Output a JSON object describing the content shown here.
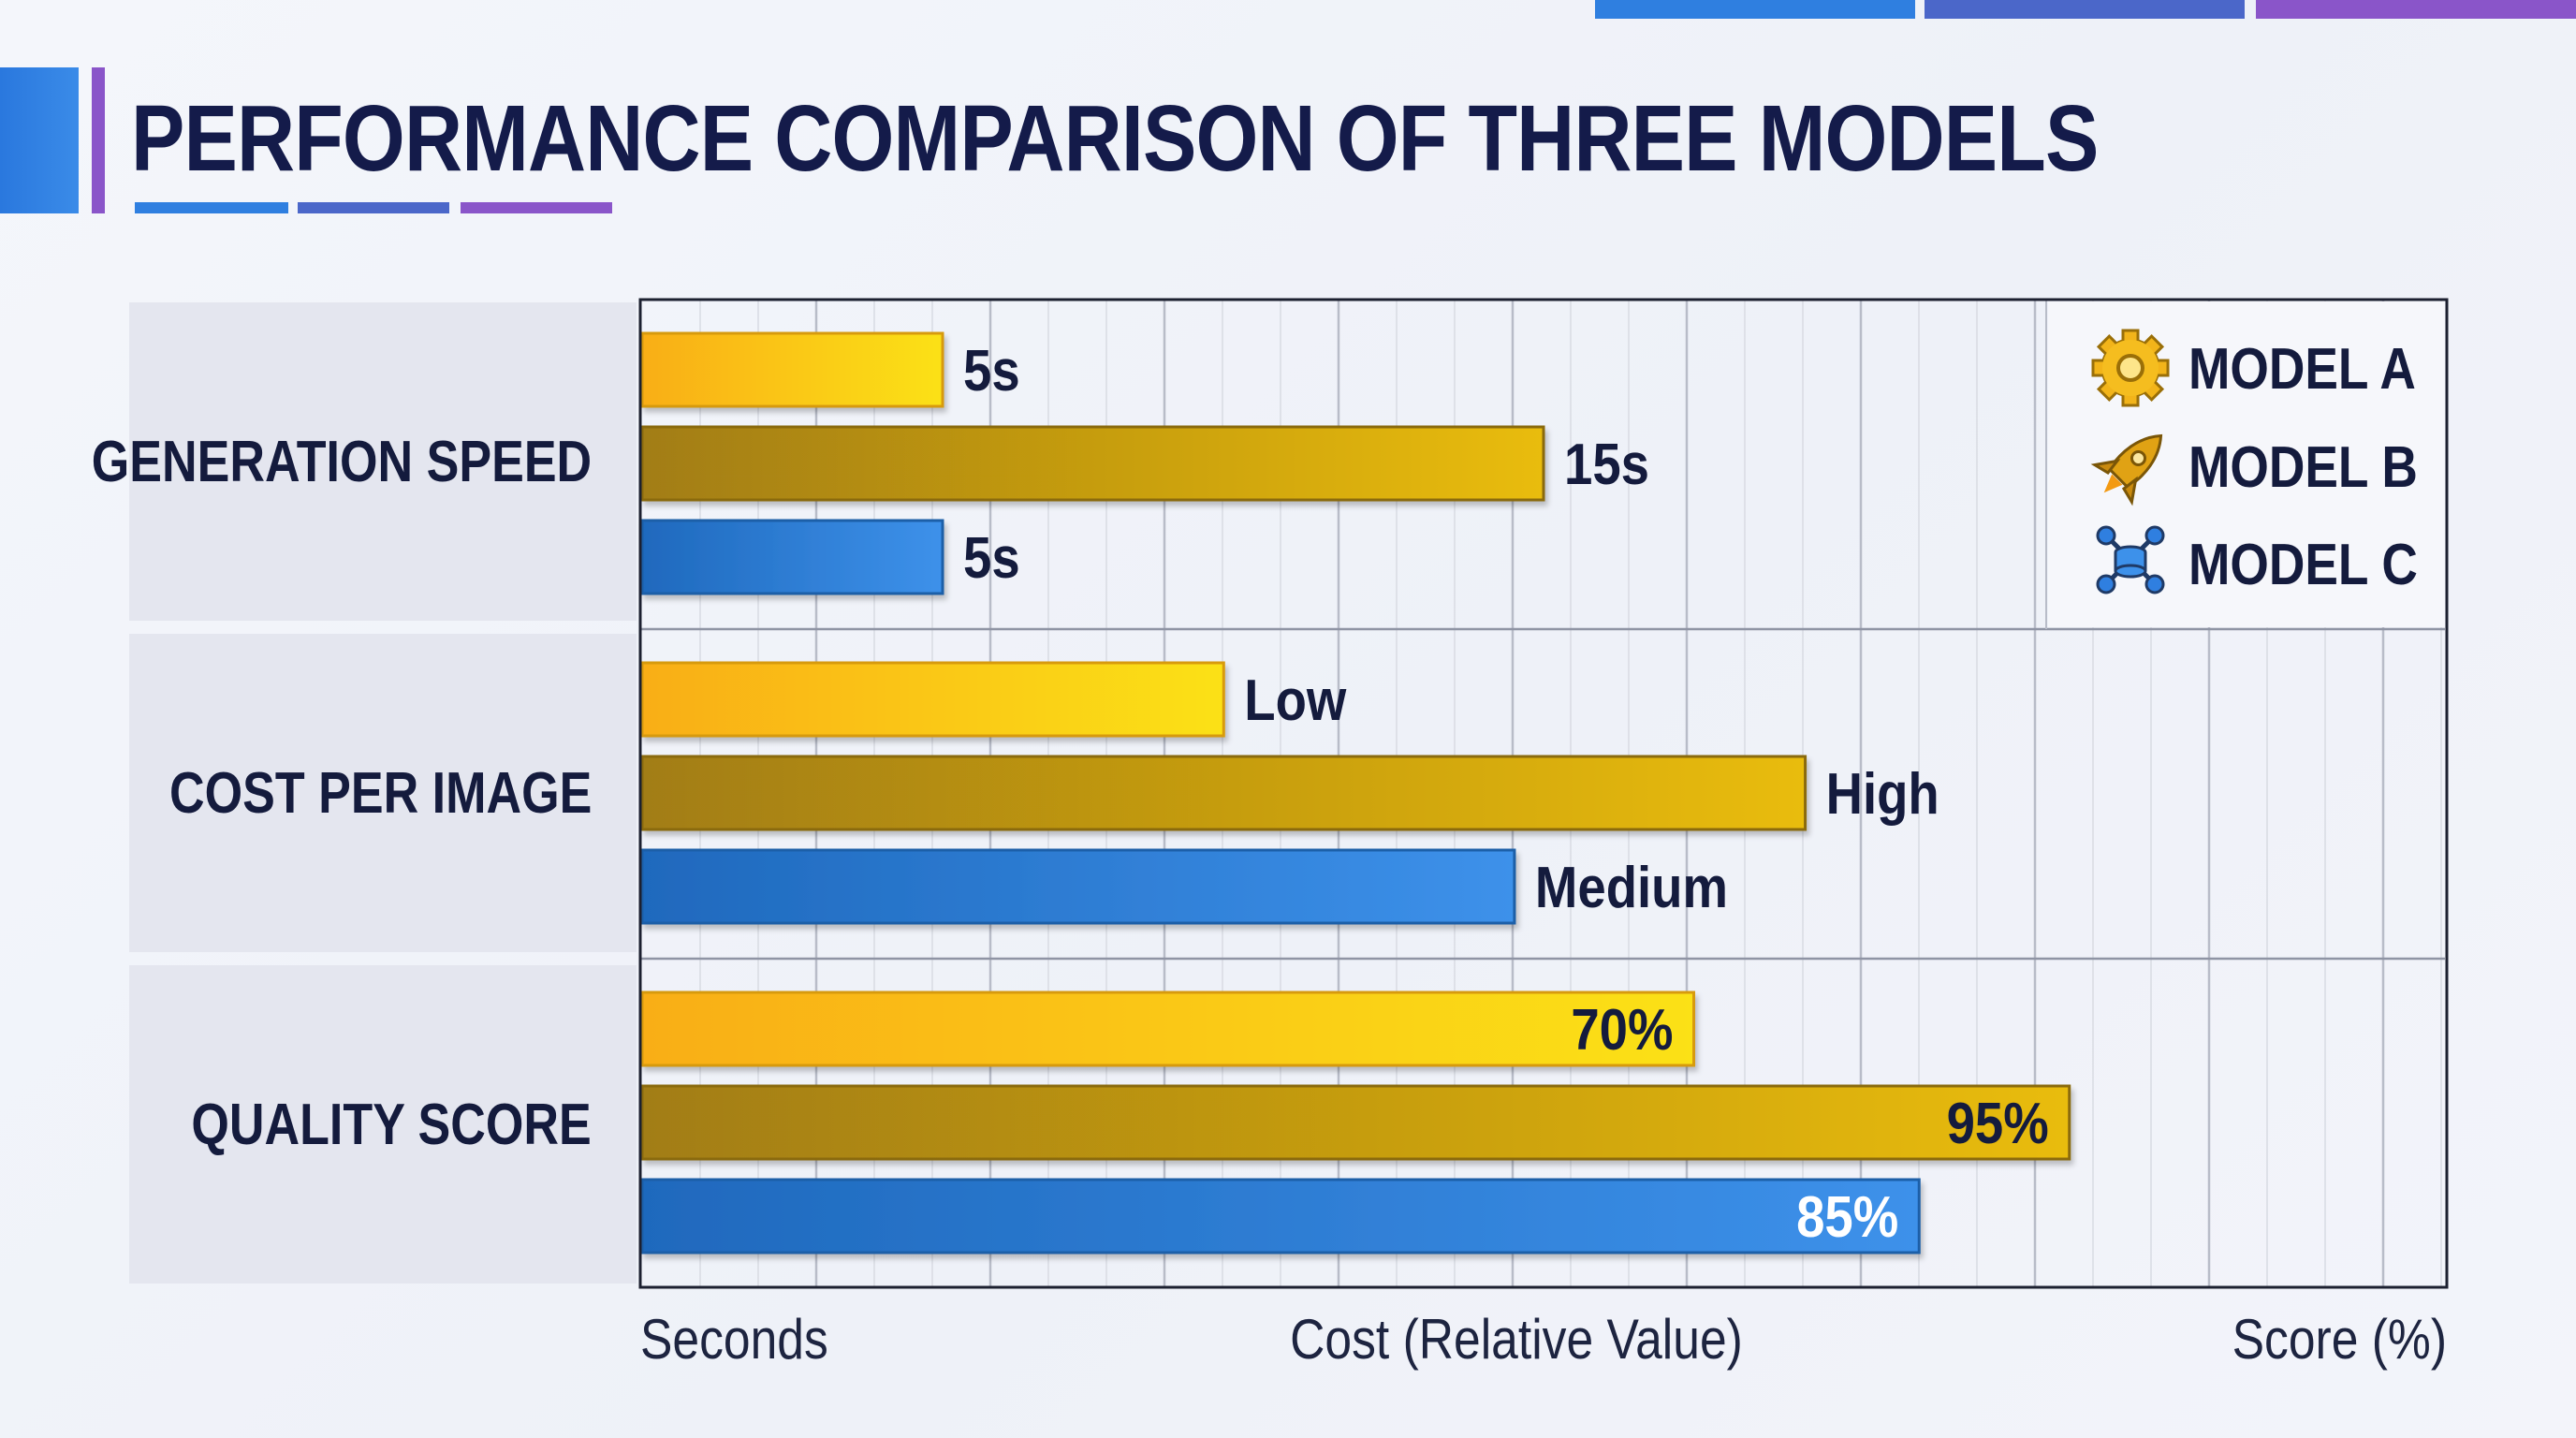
{
  "title": "PERFORMANCE COMPARISON OF THREE MODELS",
  "colors": {
    "title": "#141b4a",
    "accent_blue": "#2f7fe0",
    "accent_indigo": "#4b67c9",
    "accent_purple": "#8a55c9",
    "model_a": "#f8c51a",
    "model_b": "#c59b0c",
    "model_c": "#2e7cd8",
    "grid": "#c9ccd6",
    "axis": "#1c2030"
  },
  "legend": {
    "items": [
      {
        "label": "MODEL A",
        "icon": "gear-icon"
      },
      {
        "label": "MODEL B",
        "icon": "rocket-icon"
      },
      {
        "label": "MODEL C",
        "icon": "network-icon"
      }
    ]
  },
  "axis_titles": [
    "Seconds",
    "Cost (Relative Value)",
    "Score (%)"
  ],
  "chart_data": {
    "type": "bar",
    "orientation": "horizontal",
    "title": "PERFORMANCE COMPARISON OF THREE MODELS",
    "categories": [
      "GENERATION SPEED",
      "COST PER IMAGE",
      "QUALITY SCORE"
    ],
    "series": [
      {
        "name": "MODEL A",
        "values": [
          5,
          2,
          70
        ],
        "labels": [
          "5s",
          "Low",
          "70%"
        ]
      },
      {
        "name": "MODEL B",
        "values": [
          15,
          4,
          95
        ],
        "labels": [
          "15s",
          "High",
          "95%"
        ]
      },
      {
        "name": "MODEL C",
        "values": [
          5,
          3,
          85
        ],
        "labels": [
          "5s",
          "Medium",
          "85%"
        ]
      }
    ],
    "axes": [
      {
        "label": "Seconds",
        "range": [
          0,
          30
        ]
      },
      {
        "label": "Cost (Relative Value)",
        "range": [
          0,
          6.2
        ]
      },
      {
        "label": "Score (%)",
        "range": [
          0,
          120
        ]
      }
    ],
    "grid": true,
    "legend_position": "top-right"
  }
}
